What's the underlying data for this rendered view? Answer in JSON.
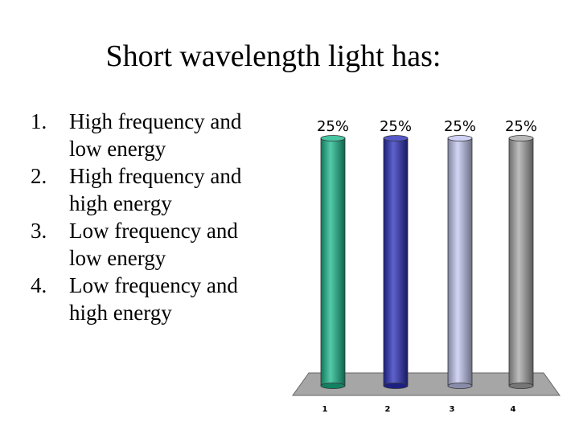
{
  "slide": {
    "title": "Short wavelength light has:",
    "options": [
      {
        "num": "1.",
        "lines": [
          "High frequency and",
          "low energy"
        ]
      },
      {
        "num": "2.",
        "lines": [
          "High frequency and",
          "high energy"
        ]
      },
      {
        "num": "3.",
        "lines": [
          "Low frequency and",
          "low energy"
        ]
      },
      {
        "num": "4.",
        "lines": [
          "Low frequency and",
          "high energy"
        ]
      }
    ]
  },
  "chart_data": {
    "type": "bar",
    "categories": [
      "1",
      "2",
      "3",
      "4"
    ],
    "values": [
      25,
      25,
      25,
      25
    ],
    "data_labels": [
      "25%",
      "25%",
      "25%",
      "25%"
    ],
    "ylim": [
      0,
      25
    ],
    "colors": [
      "#1ab88c",
      "#2a2eb8",
      "#c4c8f2",
      "#a8a8a8"
    ],
    "grid": false,
    "legend": "none"
  }
}
